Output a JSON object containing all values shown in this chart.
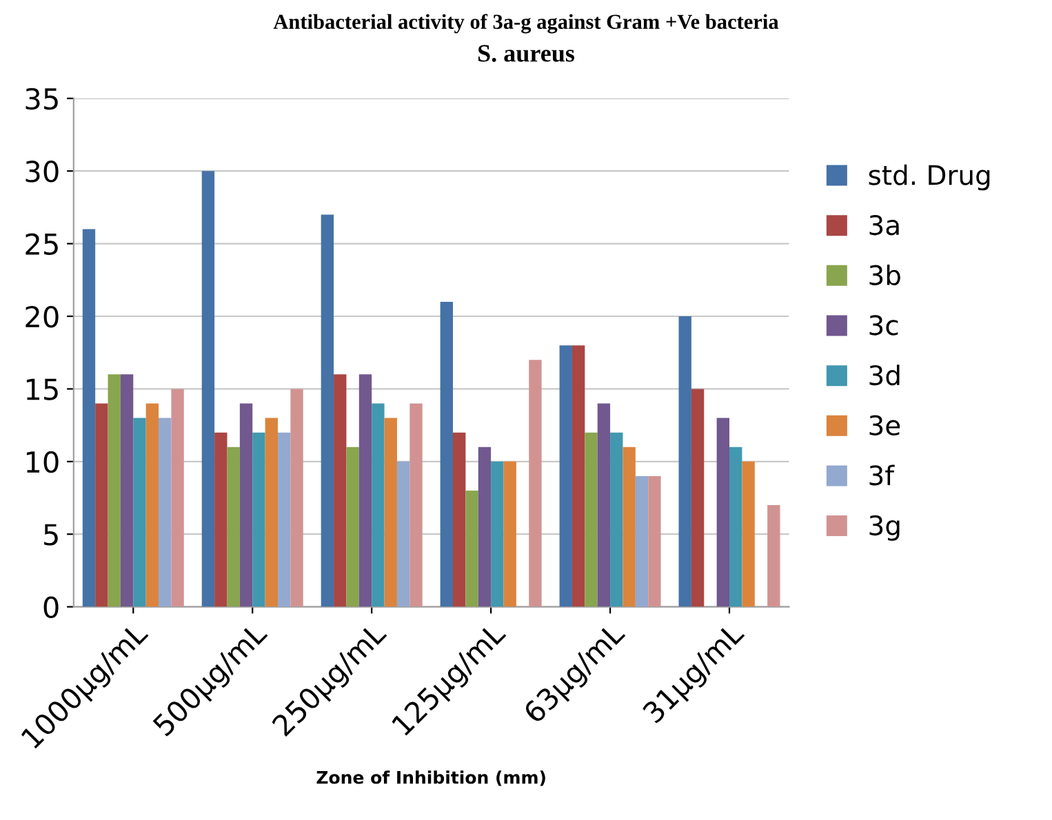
{
  "chart_data": {
    "type": "bar",
    "title": "Antibacterial activity of 3a-g against Gram +Ve bacteria",
    "subtitle": "S. aureus",
    "xlabel": "Zone of Inhibition (mm)",
    "categories": [
      "1000µg/mL",
      "500µg/mL",
      "250µg/mL",
      "125µg/mL",
      "63µg/mL",
      "31µg/mL"
    ],
    "series": [
      {
        "name": "std. Drug",
        "color": "#4572a7",
        "values": [
          26,
          30,
          27,
          21,
          18,
          20
        ]
      },
      {
        "name": "3a",
        "color": "#aa4643",
        "values": [
          14,
          12,
          16,
          12,
          18,
          15
        ]
      },
      {
        "name": "3b",
        "color": "#89a54e",
        "values": [
          16,
          11,
          11,
          8,
          12,
          null
        ]
      },
      {
        "name": "3c",
        "color": "#71588f",
        "values": [
          16,
          14,
          16,
          11,
          14,
          13
        ]
      },
      {
        "name": "3d",
        "color": "#4198af",
        "values": [
          13,
          12,
          14,
          10,
          12,
          11
        ]
      },
      {
        "name": "3e",
        "color": "#db843d",
        "values": [
          14,
          13,
          13,
          10,
          11,
          10
        ]
      },
      {
        "name": "3f",
        "color": "#93a9cf",
        "values": [
          13,
          12,
          10,
          null,
          9,
          null
        ]
      },
      {
        "name": "3g",
        "color": "#d19392",
        "values": [
          15,
          15,
          14,
          17,
          9,
          7
        ]
      }
    ],
    "ylim": [
      0,
      35
    ],
    "yticks": [
      0,
      5,
      10,
      15,
      20,
      25,
      30,
      35
    ],
    "grid": "y",
    "legend": "right"
  }
}
